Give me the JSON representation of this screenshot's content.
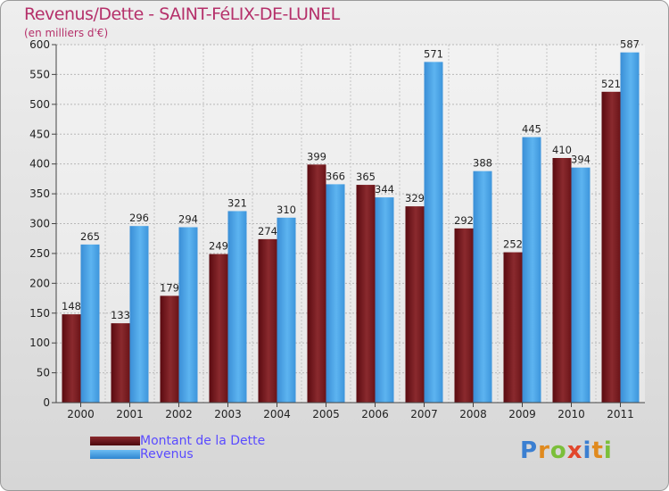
{
  "title": "Revenus/Dette - SAINT-FéLIX-DE-LUNEL",
  "subtitle": "(en milliers d'€)",
  "chart_data": {
    "type": "bar",
    "title": "Revenus/Dette - SAINT-FéLIX-DE-LUNEL",
    "ylabel": "(en milliers d'€)",
    "xlabel": "",
    "categories": [
      "2000",
      "2001",
      "2002",
      "2003",
      "2004",
      "2005",
      "2006",
      "2007",
      "2008",
      "2009",
      "2010",
      "2011"
    ],
    "series": [
      {
        "name": "Montant de la Dette",
        "color": "#7a1e22",
        "values": [
          148,
          133,
          179,
          249,
          274,
          399,
          365,
          329,
          292,
          252,
          410,
          521
        ]
      },
      {
        "name": "Revenus",
        "color": "#4aa3e6",
        "values": [
          265,
          296,
          294,
          321,
          310,
          366,
          344,
          571,
          388,
          445,
          394,
          587
        ]
      }
    ],
    "ylim": [
      0,
      600
    ],
    "yticks": [
      0,
      50,
      100,
      150,
      200,
      250,
      300,
      350,
      400,
      450,
      500,
      550,
      600
    ],
    "grid": true,
    "legend": "bottom-left"
  },
  "legend": {
    "items": [
      {
        "label": "Montant de la Dette",
        "color": "#6b0f14"
      },
      {
        "label": "Revenus",
        "color": "#3d9be0"
      }
    ]
  },
  "logo": {
    "letters": [
      "P",
      "r",
      "o",
      "x",
      "i",
      "t",
      "i"
    ],
    "colors": [
      "#3b7fd1",
      "#e08a1e",
      "#7bbf3a",
      "#e2472c",
      "#3b7fd1",
      "#e08a1e",
      "#7bbf3a"
    ]
  }
}
